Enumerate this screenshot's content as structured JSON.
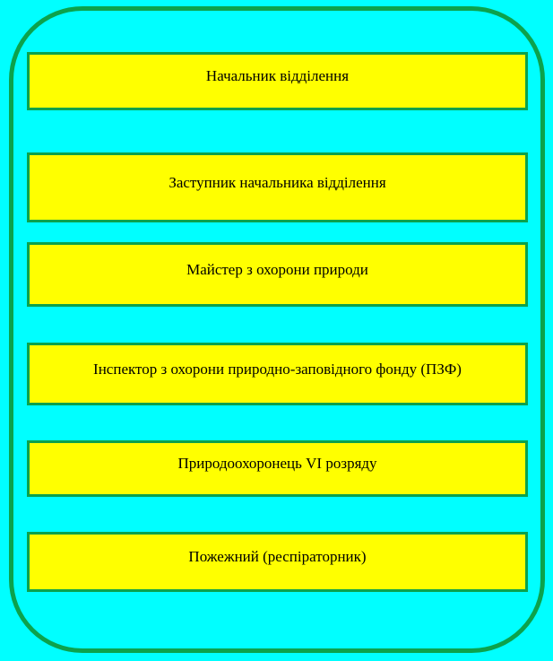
{
  "diagram": {
    "type": "position-list",
    "positions": [
      {
        "label": "Начальник відділення"
      },
      {
        "label": "Заступник начальника відділення"
      },
      {
        "label": "Майстер з охорони природи"
      },
      {
        "label": "Інспектор з охорони природно-заповідного фонду (ПЗФ)"
      },
      {
        "label": "Природоохоронець VI розряду"
      },
      {
        "label": "Пожежний (респіраторник)"
      }
    ],
    "colors": {
      "background": "#00FFFF",
      "box_fill": "#FFFF00",
      "border": "#0CA24C",
      "text": "#000000"
    }
  }
}
